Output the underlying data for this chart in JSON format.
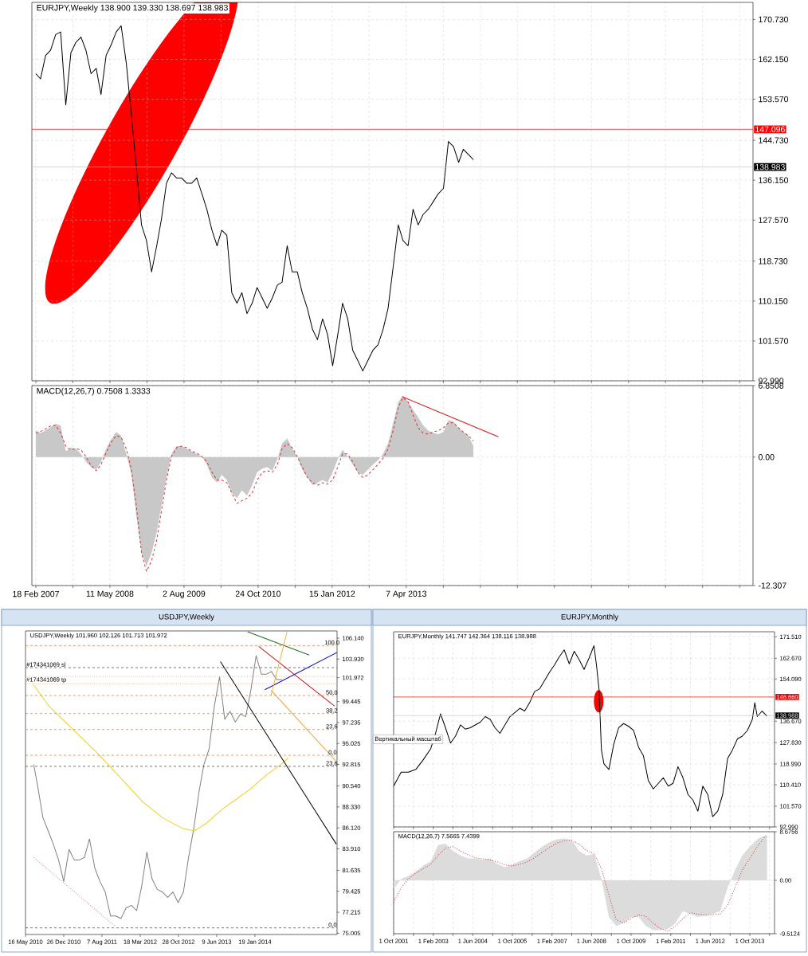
{
  "chart_data": [
    {
      "type": "line",
      "title": "EURJPY,Weekly 138.900 139.330 138.697 138.983",
      "tick_labels": "y",
      "grid": true,
      "xlim": [
        "2007-01-25",
        "2019-01-03"
      ],
      "ylim": [
        92.99,
        174.4
      ],
      "xticks": [
        {
          "value": "2007-02-18",
          "label": null
        },
        {
          "value": "2007-09-30",
          "label": null
        },
        {
          "value": "2008-05-11",
          "label": null
        },
        {
          "value": "2008-12-21",
          "label": null
        },
        {
          "value": "2009-08-02",
          "label": null
        },
        {
          "value": "2010-03-14",
          "label": null
        },
        {
          "value": "2010-10-24",
          "label": null
        },
        {
          "value": "2011-06-05",
          "label": null
        },
        {
          "value": "2012-01-15",
          "label": null
        },
        {
          "value": "2012-08-26",
          "label": null
        },
        {
          "value": "2013-04-07",
          "label": null
        },
        {
          "value": "2013-11-17",
          "label": null
        },
        {
          "value": "2014-06-29",
          "label": null
        },
        {
          "value": "2015-02-08",
          "label": null
        },
        {
          "value": "2015-09-20",
          "label": null
        },
        {
          "value": "2016-05-01",
          "label": null
        },
        {
          "value": "2016-12-11",
          "label": null
        },
        {
          "value": "2017-07-23",
          "label": null
        },
        {
          "value": "2018-03-04",
          "label": null
        },
        {
          "value": "2018-10-14",
          "label": null
        }
      ],
      "yticks": [
        {
          "value": 170.73,
          "label": "170.730"
        },
        {
          "value": 162.15,
          "label": "162.150"
        },
        {
          "value": 153.57,
          "label": "153.570"
        },
        {
          "value": 144.73,
          "label": "144.730"
        },
        {
          "value": 136.15,
          "label": "136.150"
        },
        {
          "value": 127.57,
          "label": "127.570"
        },
        {
          "value": 118.73,
          "label": "118.730"
        },
        {
          "value": 110.15,
          "label": "110.150"
        },
        {
          "value": 101.57,
          "label": "101.570"
        },
        {
          "value": 92.99,
          "label": "92.990"
        }
      ],
      "x": [
        "2007-02-18",
        "2007-03-18",
        "2007-04-18",
        "2007-05-18",
        "2007-06-18",
        "2007-07-18",
        "2007-08-18",
        "2007-09-18",
        "2007-10-18",
        "2007-11-18",
        "2007-12-18",
        "2008-01-18",
        "2008-02-18",
        "2008-03-18",
        "2008-04-18",
        "2008-05-18",
        "2008-06-18",
        "2008-07-18",
        "2008-08-18",
        "2008-09-18",
        "2008-10-18",
        "2008-11-18",
        "2008-12-18",
        "2009-01-18",
        "2009-02-18",
        "2009-03-18",
        "2009-04-18",
        "2009-05-18",
        "2009-06-18",
        "2009-07-18",
        "2009-08-18",
        "2009-09-18",
        "2009-10-18",
        "2009-11-18",
        "2009-12-18",
        "2010-01-18",
        "2010-02-18",
        "2010-03-18",
        "2010-04-18",
        "2010-05-18",
        "2010-06-18",
        "2010-07-18",
        "2010-08-18",
        "2010-09-18",
        "2010-10-18",
        "2010-11-18",
        "2010-12-18",
        "2011-01-18",
        "2011-02-18",
        "2011-03-18",
        "2011-04-18",
        "2011-05-18",
        "2011-06-18",
        "2011-07-18",
        "2011-08-18",
        "2011-09-18",
        "2011-10-18",
        "2011-11-18",
        "2011-12-18",
        "2012-01-18",
        "2012-02-18",
        "2012-03-18",
        "2012-04-18",
        "2012-05-18",
        "2012-06-18",
        "2012-07-18",
        "2012-08-18",
        "2012-09-18",
        "2012-10-18",
        "2012-11-18",
        "2012-12-18",
        "2013-01-18",
        "2013-02-18",
        "2013-03-18",
        "2013-04-18",
        "2013-05-18",
        "2013-06-18",
        "2013-07-18",
        "2013-08-18",
        "2013-09-18",
        "2013-10-18",
        "2013-11-18",
        "2013-12-18",
        "2014-01-18",
        "2014-02-18",
        "2014-03-18",
        "2014-04-18",
        "2014-05-18"
      ],
      "series": [
        {
          "color": "#000000",
          "values": [
            159.06,
            157.94,
            162.99,
            164.11,
            167.48,
            168.04,
            152.33,
            163.55,
            165.79,
            166.92,
            164.11,
            159.06,
            160.18,
            154.57,
            162.99,
            165.23,
            168.04,
            169.38,
            161.31,
            150.09,
            138.87,
            126.52,
            123.16,
            116.43,
            122.04,
            127.65,
            135.5,
            137.74,
            136.62,
            136.62,
            135.5,
            135.5,
            136.62,
            133.26,
            129.89,
            125.4,
            122.04,
            125.4,
            124.28,
            111.94,
            109.69,
            111.94,
            107.45,
            109.69,
            113.06,
            110.82,
            108.57,
            110.82,
            113.62,
            114.18,
            122.04,
            116.43,
            116.43,
            111.94,
            108.57,
            104.08,
            101.84,
            106.33,
            102.96,
            96.23,
            102.96,
            109.69,
            106.33,
            99.6,
            97.35,
            95.11,
            97.35,
            99.6,
            100.72,
            104.08,
            108.57,
            117.55,
            126.52,
            123.16,
            122.04,
            129.89,
            126.52,
            128.77,
            129.89,
            131.57,
            133.26,
            134.38,
            144.48,
            143.35,
            139.99,
            142.79,
            141.67,
            140.55
          ]
        }
      ],
      "ref_lines": [
        {
          "axis": "y",
          "value": 147.096,
          "label": "147.096",
          "color": "#ff0000"
        },
        {
          "axis": "y",
          "value": 138.983,
          "label": "138.983",
          "color": "#c0c0c0"
        }
      ]
    },
    {
      "type": "area",
      "title": "MACD(12,26,7) 0.7508 1.3333",
      "grid": true,
      "xlim": [
        "2007-01-25",
        "2019-01-03"
      ],
      "ylim": [
        -12.307,
        6.8508
      ],
      "xticks": [
        {
          "value": "2007-02-18",
          "label": "18 Feb 2007"
        },
        {
          "value": "2007-09-30",
          "label": null
        },
        {
          "value": "2008-05-11",
          "label": "11 May 2008"
        },
        {
          "value": "2008-12-21",
          "label": null
        },
        {
          "value": "2009-08-02",
          "label": "2 Aug 2009"
        },
        {
          "value": "2010-03-14",
          "label": null
        },
        {
          "value": "2010-10-24",
          "label": "24 Oct 2010"
        },
        {
          "value": "2011-06-05",
          "label": null
        },
        {
          "value": "2012-01-15",
          "label": "15 Jan 2012"
        },
        {
          "value": "2012-08-26",
          "label": null
        },
        {
          "value": "2013-04-07",
          "label": "7 Apr 2013"
        },
        {
          "value": "2013-11-17",
          "label": null
        },
        {
          "value": "2014-06-29",
          "label": null
        },
        {
          "value": "2015-02-08",
          "label": null
        },
        {
          "value": "2015-09-20",
          "label": null
        },
        {
          "value": "2016-05-01",
          "label": null
        },
        {
          "value": "2016-12-11",
          "label": null
        },
        {
          "value": "2017-07-23",
          "label": null
        },
        {
          "value": "2018-03-04",
          "label": null
        },
        {
          "value": "2018-10-14",
          "label": null
        }
      ],
      "yticks": [
        6.8508,
        {
          "value": 0,
          "label": "0.00"
        },
        -12.307
      ],
      "x": [
        "2007-02-18",
        "2007-03-18",
        "2007-04-18",
        "2007-05-18",
        "2007-06-18",
        "2007-07-18",
        "2007-08-18",
        "2007-09-18",
        "2007-10-18",
        "2007-11-18",
        "2007-12-18",
        "2008-01-18",
        "2008-02-18",
        "2008-03-18",
        "2008-04-18",
        "2008-05-18",
        "2008-06-18",
        "2008-07-18",
        "2008-08-18",
        "2008-09-18",
        "2008-10-18",
        "2008-11-18",
        "2008-12-18",
        "2009-01-18",
        "2009-02-18",
        "2009-03-18",
        "2009-04-18",
        "2009-05-18",
        "2009-06-18",
        "2009-07-18",
        "2009-08-18",
        "2009-09-18",
        "2009-10-18",
        "2009-11-18",
        "2009-12-18",
        "2010-01-18",
        "2010-02-18",
        "2010-03-18",
        "2010-04-18",
        "2010-05-18",
        "2010-06-18",
        "2010-07-18",
        "2010-08-18",
        "2010-09-18",
        "2010-10-18",
        "2010-11-18",
        "2010-12-18",
        "2011-01-18",
        "2011-02-18",
        "2011-03-18",
        "2011-04-18",
        "2011-05-18",
        "2011-06-18",
        "2011-07-18",
        "2011-08-18",
        "2011-09-18",
        "2011-10-18",
        "2011-11-18",
        "2011-12-18",
        "2012-01-18",
        "2012-02-18",
        "2012-03-18",
        "2012-04-18",
        "2012-05-18",
        "2012-06-18",
        "2012-07-18",
        "2012-08-18",
        "2012-09-18",
        "2012-10-18",
        "2012-11-18",
        "2012-12-18",
        "2013-01-18",
        "2013-02-18",
        "2013-03-18",
        "2013-04-18",
        "2013-05-18",
        "2013-06-18",
        "2013-07-18",
        "2013-08-18",
        "2013-09-18",
        "2013-10-18",
        "2013-11-18",
        "2013-12-18",
        "2014-01-18",
        "2014-02-18",
        "2014-03-18",
        "2014-04-18",
        "2014-05-18"
      ],
      "series": [
        {
          "color": "#c8c8c8",
          "values": [
            2.54,
            2.3,
            2.54,
            2.89,
            3.19,
            3.04,
            0.55,
            0.9,
            0.8,
            0.3,
            -0.45,
            -0.95,
            -1.2,
            -0.45,
            0.8,
            1.7,
            2.4,
            2.05,
            0.3,
            -1.7,
            -5.69,
            -9.18,
            -10.43,
            -9.18,
            -7.19,
            -4.69,
            -1.95,
            0.3,
            1.05,
            1.05,
            0.8,
            0.55,
            0.3,
            0.05,
            -0.7,
            -1.95,
            -2.45,
            -1.7,
            -2.2,
            -3.44,
            -3.94,
            -3.19,
            -3.69,
            -2.69,
            -1.45,
            -1.1,
            -0.95,
            -1.3,
            -0.2,
            1.3,
            1.8,
            0.8,
            0.05,
            -1.2,
            -1.95,
            -2.69,
            -2.45,
            -2.2,
            -2.45,
            -1.45,
            -0.2,
            0.7,
            0.05,
            -0.7,
            -1.45,
            -1.7,
            -1.2,
            -0.7,
            -0.3,
            0.3,
            1.3,
            3.29,
            5.29,
            5.89,
            5.29,
            4.54,
            3.79,
            3.04,
            2.54,
            2.3,
            2.2,
            2.4,
            3.54,
            3.39,
            2.79,
            2.4,
            2.05,
            1.05
          ]
        },
        {
          "type": "line",
          "color": "#e03030",
          "line_style": "dashed",
          "values": [
            2.3,
            2.45,
            2.69,
            2.99,
            3.04,
            2.3,
            1.05,
            0.7,
            0.8,
            0.7,
            0.05,
            -0.8,
            -1.3,
            -0.7,
            0.4,
            1.4,
            2.05,
            1.9,
            0.8,
            -1.2,
            -4.69,
            -9.18,
            -10.93,
            -9.93,
            -7.93,
            -5.19,
            -2.2,
            0.05,
            0.9,
            1.05,
            0.9,
            0.55,
            0.4,
            0.05,
            -0.45,
            -1.45,
            -2.2,
            -2.2,
            -2.45,
            -3.44,
            -4.44,
            -4.19,
            -3.94,
            -3.44,
            -2.2,
            -1.45,
            -1.3,
            -1.45,
            -0.7,
            0.8,
            1.3,
            0.9,
            0.05,
            -0.95,
            -1.95,
            -2.45,
            -2.69,
            -2.45,
            -2.59,
            -2.2,
            -0.95,
            0.3,
            0.3,
            -0.45,
            -1.45,
            -1.95,
            -1.7,
            -1.2,
            -0.7,
            -0.1,
            0.8,
            2.54,
            4.79,
            5.69,
            5.29,
            4.04,
            2.79,
            2.3,
            2.2,
            2.4,
            2.54,
            2.79,
            3.29,
            3.29,
            2.79,
            2.4,
            2.05,
            1.55
          ]
        },
        {
          "type": "line",
          "color": "#e01010",
          "x": [
            "2013-03-13",
            "2014-10-16"
          ],
          "values": [
            5.79,
            1.95
          ]
        }
      ]
    },
    {
      "type": "line",
      "title": "USDJPY,Weekly",
      "subtitle": "USDJPY,Weekly 101.960 102.126 101.713 101.972",
      "xlim": [
        "2010-05-16",
        "2015-05-15"
      ],
      "ylim": [
        74.87,
        106.9
      ],
      "xticks": [
        {
          "value": "2010-05-16",
          "label": "16 May 2010"
        },
        {
          "value": "2010-12-26",
          "label": "26 Dec 2010"
        },
        {
          "value": "2011-08-07",
          "label": "7 Aug 2011"
        },
        {
          "value": "2012-03-18",
          "label": "18 Mar 2012"
        },
        {
          "value": "2012-10-28",
          "label": "28 Oct 2012"
        },
        {
          "value": "2013-06-09",
          "label": "9 Jun 2013"
        },
        {
          "value": "2014-01-19",
          "label": "19 Jan 2014"
        }
      ],
      "yticks": [
        {
          "value": 106.14,
          "label": "106.140"
        },
        {
          "value": 103.93,
          "label": "103.930"
        },
        {
          "value": 101.972,
          "label": "101.972"
        },
        {
          "value": 99.445,
          "label": "99.445"
        },
        {
          "value": 97.235,
          "label": "97.235"
        },
        {
          "value": 95.025,
          "label": "95.025"
        },
        {
          "value": 92.815,
          "label": "92.815"
        },
        {
          "value": 90.54,
          "label": "90.540"
        },
        {
          "value": 88.33,
          "label": "88.330"
        },
        {
          "value": 86.12,
          "label": "86.120"
        },
        {
          "value": 83.91,
          "label": "83.910"
        },
        {
          "value": 81.635,
          "label": "81.635"
        },
        {
          "value": 79.425,
          "label": "79.425"
        },
        {
          "value": 77.215,
          "label": "77.215"
        },
        {
          "value": 75.005,
          "label": "75.005"
        }
      ],
      "series": [
        {
          "color": "#808080",
          "x": [
            "2010-07-03",
            "2010-07-26",
            "2010-08-26",
            "2010-09-26",
            "2010-10-26",
            "2010-11-26",
            "2010-12-26",
            "2011-01-26",
            "2011-02-26",
            "2011-03-26",
            "2011-04-26",
            "2011-05-26",
            "2011-06-26",
            "2011-07-26",
            "2011-08-26",
            "2011-09-26",
            "2011-10-26",
            "2011-11-26",
            "2011-12-26",
            "2012-01-26",
            "2012-02-26",
            "2012-03-26",
            "2012-04-26",
            "2012-05-26",
            "2012-06-26",
            "2012-07-26",
            "2012-08-26",
            "2012-09-26",
            "2012-10-26",
            "2012-11-26",
            "2012-12-26",
            "2013-01-26",
            "2013-02-26",
            "2013-03-26",
            "2013-04-26",
            "2013-05-26",
            "2013-06-26",
            "2013-07-26",
            "2013-08-26",
            "2013-09-26",
            "2013-10-26",
            "2013-11-26",
            "2013-12-26",
            "2014-01-26",
            "2014-02-26",
            "2014-03-26",
            "2014-04-26",
            "2014-05-26",
            "2014-06-26"
          ],
          "values": [
            92.8,
            90.56,
            87.2,
            85.8,
            84.4,
            82.72,
            80.47,
            83.84,
            82.72,
            82.72,
            83.0,
            84.96,
            81.87,
            80.47,
            79.35,
            76.83,
            76.83,
            76.55,
            77.67,
            77.95,
            77.39,
            79.91,
            83.56,
            80.75,
            79.63,
            79.35,
            78.79,
            79.35,
            78.23,
            79.35,
            83.0,
            86.08,
            90.0,
            92.8,
            94.48,
            98.97,
            102.05,
            97.57,
            98.41,
            97.29,
            98.13,
            97.85,
            100.65,
            104.29,
            102.33,
            102.33,
            102.61,
            101.77,
            101.77
          ]
        },
        {
          "color": "#f0d020",
          "x": [
            "2010-07-03",
            "2010-09-30",
            "2011-02-22",
            "2011-07-16",
            "2011-12-08",
            "2012-04-01",
            "2012-07-26",
            "2012-11-19",
            "2013-01-30",
            "2013-04-12",
            "2013-07-08",
            "2013-10-03",
            "2013-12-28",
            "2014-03-25",
            "2014-06-20",
            "2014-08-02"
          ],
          "values": [
            101.21,
            98.97,
            96.45,
            93.92,
            91.12,
            88.88,
            87.2,
            86.08,
            85.8,
            86.64,
            88.04,
            89.16,
            90.28,
            91.68,
            92.8,
            93.5
          ]
        },
        {
          "color": "#000000",
          "x": [
            "2013-07-01",
            "2015-05-11"
          ],
          "values": [
            103.67,
            84.4
          ]
        },
        {
          "color": "#c01818",
          "x": [
            "2014-02-10",
            "2015-05-01"
          ],
          "values": [
            105.27,
            98.97
          ]
        },
        {
          "color": "#f0a030",
          "x": [
            "2014-04-23",
            "2015-05-06"
          ],
          "values": [
            100.65,
            93.22
          ]
        },
        {
          "color": "#1010c0",
          "x": [
            "2014-03-18",
            "2015-05-15"
          ],
          "values": [
            100.7,
            104.63
          ]
        },
        {
          "color": "#207020",
          "x": [
            "2013-12-07",
            "2014-12-03"
          ],
          "values": [
            106.81,
            104.35
          ]
        },
        {
          "color": "#f0b040",
          "x": [
            "2014-04-23",
            "2014-07-26"
          ],
          "values": [
            100.09,
            106.81
          ]
        },
        {
          "color": "#d08080",
          "line_style": "dotted",
          "x": [
            "2010-07-03",
            "2011-10-25"
          ],
          "values": [
            83.0,
            75.71
          ]
        }
      ],
      "ref_lines": [
        {
          "axis": "y",
          "value": 105.36,
          "color": "#e07040",
          "line_style": "dashed"
        },
        {
          "axis": "y",
          "value": 100.09,
          "color": "#e07040",
          "line_style": "dashed"
        },
        {
          "axis": "y",
          "value": 98.18,
          "color": "#e07040",
          "line_style": "dashed"
        },
        {
          "axis": "y",
          "value": 96.5,
          "color": "#e07040",
          "line_style": "dashed"
        },
        {
          "axis": "y",
          "value": 93.78,
          "color": "#e07040",
          "line_style": "dashed"
        },
        {
          "axis": "y",
          "value": 92.61,
          "color": "#404040",
          "line_style": "dashed"
        },
        {
          "axis": "y",
          "value": 75.57,
          "color": "#404040",
          "line_style": "dashed"
        },
        {
          "axis": "y",
          "value": 103.03,
          "color": "#404040",
          "line_style": "dashed"
        },
        {
          "axis": "y",
          "value": 102.11,
          "color": "#e07040",
          "line_style": "dotted"
        },
        {
          "axis": "y",
          "value": 101.32,
          "color": "#e07040",
          "line_style": "dotted"
        }
      ],
      "annotations": [
        {
          "text": "#174341069 sl",
          "x": "2010-05-16",
          "y": 103.03
        },
        {
          "text": "#174341069 tp",
          "x": "2010-05-16",
          "y": 101.32
        },
        {
          "text": "100.0",
          "x": "2015-02-25",
          "y": 105.36
        },
        {
          "text": "50.0",
          "x": "2015-03-05",
          "y": 100.09
        },
        {
          "text": "38.2",
          "x": "2015-03-05",
          "y": 98.18
        },
        {
          "text": "23.6",
          "x": "2015-03-05",
          "y": 96.5
        },
        {
          "text": "0.0",
          "x": "2015-03-20",
          "y": 93.78
        },
        {
          "text": "23.6",
          "x": "2015-03-05",
          "y": 92.61
        },
        {
          "text": "0.0",
          "x": "2015-03-20",
          "y": 75.57
        }
      ]
    },
    {
      "type": "line",
      "title": "EURJPY,Monthly",
      "subtitle": "EURJPY,Monthly 141.747 142.364 138.116 138.988",
      "tick_labels": "y",
      "grid": true,
      "xlim": [
        "2001-10",
        "2014-08"
      ],
      "ylim": [
        92.99,
        173.6
      ],
      "xticks": [
        {
          "value": "2001-10",
          "label": null
        },
        {
          "value": "2002-06",
          "label": null
        },
        {
          "value": "2003-02",
          "label": null
        },
        {
          "value": "2003-10",
          "label": null
        },
        {
          "value": "2004-06",
          "label": null
        },
        {
          "value": "2005-02",
          "label": null
        },
        {
          "value": "2005-10",
          "label": null
        },
        {
          "value": "2006-06",
          "label": null
        },
        {
          "value": "2007-02",
          "label": null
        },
        {
          "value": "2007-10",
          "label": null
        },
        {
          "value": "2008-06",
          "label": null
        },
        {
          "value": "2009-02",
          "label": null
        },
        {
          "value": "2009-10",
          "label": null
        },
        {
          "value": "2010-06",
          "label": null
        },
        {
          "value": "2011-02",
          "label": null
        },
        {
          "value": "2011-10",
          "label": null
        },
        {
          "value": "2012-06",
          "label": null
        },
        {
          "value": "2013-02",
          "label": null
        },
        {
          "value": "2013-10",
          "label": null
        },
        {
          "value": "2014-06",
          "label": null
        }
      ],
      "yticks": [
        {
          "value": 171.51,
          "label": "171.510"
        },
        {
          "value": 162.67,
          "label": "162.670"
        },
        {
          "value": 154.09,
          "label": "154.090"
        },
        {
          "value": 136.67,
          "label": "136.670"
        },
        {
          "value": 127.83,
          "label": "127.830"
        },
        {
          "value": 118.99,
          "label": "118.990"
        },
        {
          "value": 110.41,
          "label": "110.410"
        },
        {
          "value": 101.57,
          "label": "101.570"
        },
        {
          "value": 92.99,
          "label": "92.990"
        }
      ],
      "series": [
        {
          "color": "#000000",
          "x": [
            "2001-10",
            "2002-01",
            "2002-04",
            "2002-07",
            "2002-10",
            "2003-01",
            "2003-03",
            "2003-05",
            "2003-07",
            "2003-09",
            "2003-11",
            "2004-01",
            "2004-03",
            "2004-05",
            "2004-07",
            "2004-09",
            "2004-11",
            "2005-01",
            "2005-03",
            "2005-05",
            "2005-07",
            "2005-09",
            "2005-11",
            "2006-01",
            "2006-03",
            "2006-05",
            "2006-07",
            "2006-09",
            "2006-11",
            "2007-01",
            "2007-03",
            "2007-05",
            "2007-07",
            "2007-09",
            "2007-11",
            "2008-01",
            "2008-03",
            "2008-05",
            "2008-07",
            "2008-08",
            "2008-09",
            "2008-10",
            "2008-11",
            "2009-01",
            "2009-03",
            "2009-05",
            "2009-07",
            "2009-09",
            "2009-11",
            "2010-01",
            "2010-03",
            "2010-05",
            "2010-07",
            "2010-09",
            "2010-11",
            "2011-01",
            "2011-03",
            "2011-05",
            "2011-07",
            "2011-09",
            "2011-11",
            "2012-01",
            "2012-03",
            "2012-05",
            "2012-07",
            "2012-09",
            "2012-11",
            "2013-01",
            "2013-03",
            "2013-05",
            "2013-07",
            "2013-09",
            "2013-11",
            "2013-12",
            "2014-01",
            "2014-03",
            "2014-05"
          ],
          "values": [
            109.84,
            115.58,
            115.58,
            116.73,
            120.75,
            125.34,
            131.66,
            139.7,
            133.96,
            127.64,
            130.51,
            135.11,
            133.38,
            133.96,
            135.11,
            136.25,
            138.55,
            137.4,
            133.96,
            131.66,
            135.11,
            138.55,
            140.27,
            142.0,
            140.85,
            144.29,
            148.89,
            150.03,
            153.48,
            156.93,
            159.8,
            163.24,
            166.11,
            160.37,
            165.54,
            162.09,
            158.07,
            162.67,
            167.84,
            159.8,
            150.03,
            124.77,
            119.03,
            116.73,
            127.07,
            133.96,
            135.68,
            134.53,
            132.81,
            125.92,
            122.47,
            112.14,
            108.69,
            110.99,
            113.29,
            109.84,
            110.99,
            117.88,
            113.29,
            106.4,
            104.1,
            99.51,
            109.84,
            106.4,
            97.21,
            99.51,
            106.4,
            121.32,
            124.77,
            129.36,
            130.51,
            132.81,
            137.4,
            144.29,
            138.55,
            140.85,
            138.78
          ]
        }
      ],
      "ref_lines": [
        {
          "axis": "y",
          "value": 146.66,
          "label": "146.660",
          "color": "#ff0000"
        },
        {
          "axis": "y",
          "value": 138.988,
          "label": "138.988",
          "color": "#c8c8c8"
        }
      ],
      "annotations": [
        "Вертикальный масштаб"
      ]
    },
    {
      "type": "area",
      "title": "MACD(12,26,7) 7.5665 7.4399",
      "grid": true,
      "xlim": [
        "2001-10",
        "2014-08"
      ],
      "ylim": [
        -9.5124,
        8.6756
      ],
      "xticks": [
        {
          "value": "2001-10",
          "label": "1 Oct 2001"
        },
        {
          "value": "2002-06",
          "label": null
        },
        {
          "value": "2003-02",
          "label": "1 Feb 2003"
        },
        {
          "value": "2003-10",
          "label": null
        },
        {
          "value": "2004-06",
          "label": "1 Jun 2004"
        },
        {
          "value": "2005-02",
          "label": null
        },
        {
          "value": "2005-10",
          "label": "1 Oct 2005"
        },
        {
          "value": "2006-06",
          "label": null
        },
        {
          "value": "2007-02",
          "label": "1 Feb 2007"
        },
        {
          "value": "2007-10",
          "label": null
        },
        {
          "value": "2008-06",
          "label": "1 Jun 2008"
        },
        {
          "value": "2009-02",
          "label": null
        },
        {
          "value": "2009-10",
          "label": "1 Oct 2009"
        },
        {
          "value": "2010-06",
          "label": null
        },
        {
          "value": "2011-02",
          "label": "1 Feb 2011"
        },
        {
          "value": "2011-10",
          "label": null
        },
        {
          "value": "2012-06",
          "label": "1 Jun 2012"
        },
        {
          "value": "2013-02",
          "label": null
        },
        {
          "value": "2013-10",
          "label": "1 Oct 2013"
        },
        {
          "value": "2014-06",
          "label": null
        }
      ],
      "yticks": [
        8.6756,
        {
          "value": 0,
          "label": "0.00"
        },
        -9.5124
      ],
      "x": [
        "2001-10",
        "2002-01",
        "2002-04",
        "2002-07",
        "2002-10",
        "2003-01",
        "2003-04",
        "2003-07",
        "2003-10",
        "2004-01",
        "2004-04",
        "2004-07",
        "2004-10",
        "2005-01",
        "2005-04",
        "2005-07",
        "2005-10",
        "2006-01",
        "2006-04",
        "2006-07",
        "2006-10",
        "2007-01",
        "2007-04",
        "2007-07",
        "2007-10",
        "2008-01",
        "2008-04",
        "2008-07",
        "2008-10",
        "2009-01",
        "2009-04",
        "2009-07",
        "2009-10",
        "2010-01",
        "2010-04",
        "2010-07",
        "2010-10",
        "2011-01",
        "2011-04",
        "2011-07",
        "2011-10",
        "2012-01",
        "2012-04",
        "2012-07",
        "2012-10",
        "2013-01",
        "2013-04",
        "2013-07",
        "2013-10",
        "2014-01",
        "2014-04",
        "2014-05"
      ],
      "series": [
        {
          "color": "#dcdcdc",
          "values": [
            -1.57,
            0.26,
            0.78,
            1.57,
            2.62,
            3.4,
            6.28,
            6.54,
            5.23,
            4.45,
            3.92,
            3.92,
            3.66,
            3.92,
            2.88,
            2.35,
            2.88,
            3.4,
            3.92,
            4.97,
            6.02,
            6.8,
            7.32,
            7.48,
            7.17,
            5.23,
            4.45,
            4.71,
            0.26,
            -6.54,
            -8.11,
            -7.58,
            -6.54,
            -6.54,
            -8.11,
            -8.89,
            -8.89,
            -8.63,
            -7.58,
            -5.49,
            -6.01,
            -6.54,
            -6.28,
            -6.01,
            -5.49,
            -1.31,
            1.83,
            4.45,
            6.02,
            7.32,
            8.0,
            7.85
          ]
        },
        {
          "type": "line",
          "color": "#d04040",
          "line_style": "dotted",
          "values": [
            -3.92,
            -1.31,
            0.26,
            1.31,
            2.09,
            2.88,
            4.45,
            5.75,
            6.02,
            5.23,
            4.55,
            4.03,
            3.82,
            3.66,
            3.29,
            2.77,
            2.56,
            2.88,
            3.29,
            4.03,
            4.97,
            5.86,
            6.64,
            7.06,
            7.17,
            6.43,
            5.33,
            4.71,
            2.09,
            -2.62,
            -7.06,
            -7.58,
            -6.8,
            -6.12,
            -6.43,
            -7.69,
            -8.63,
            -9.05,
            -8.11,
            -6.8,
            -5.75,
            -6.01,
            -6.17,
            -6.12,
            -6.01,
            -4.45,
            -1.31,
            1.83,
            3.92,
            6.02,
            7.69,
            8.0
          ]
        }
      ]
    }
  ]
}
